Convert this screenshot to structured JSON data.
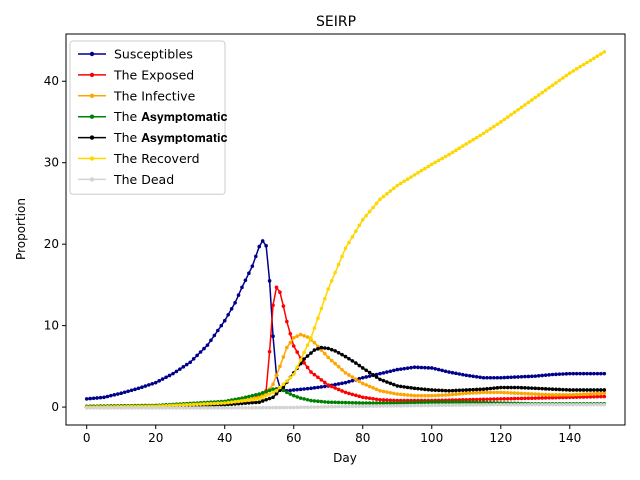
{
  "chart_data": {
    "type": "line",
    "title": "SEIRP",
    "xlabel": "Day",
    "ylabel": "Proportion",
    "xlim": [
      -6,
      156
    ],
    "ylim": [
      -2.2,
      45.8
    ],
    "xticks": [
      0,
      20,
      40,
      60,
      80,
      100,
      120,
      140
    ],
    "yticks": [
      0,
      10,
      20,
      30,
      40
    ],
    "grid": false,
    "legend": "top-left",
    "marker": "dot",
    "series": [
      {
        "name": "Susceptibles",
        "color": "#00008b",
        "points": [
          [
            0,
            1.0
          ],
          [
            5,
            1.2
          ],
          [
            10,
            1.7
          ],
          [
            15,
            2.3
          ],
          [
            20,
            3.0
          ],
          [
            25,
            4.1
          ],
          [
            30,
            5.5
          ],
          [
            35,
            7.6
          ],
          [
            40,
            10.6
          ],
          [
            43,
            12.8
          ],
          [
            45,
            14.7
          ],
          [
            48,
            17.3
          ],
          [
            50,
            19.7
          ],
          [
            51,
            20.4
          ],
          [
            52,
            19.8
          ],
          [
            53,
            15.5
          ],
          [
            54,
            8.7
          ],
          [
            55,
            3.9
          ],
          [
            56,
            2.4
          ],
          [
            58,
            2.0
          ],
          [
            60,
            2.1
          ],
          [
            65,
            2.3
          ],
          [
            70,
            2.6
          ],
          [
            75,
            3.0
          ],
          [
            80,
            3.6
          ],
          [
            85,
            4.1
          ],
          [
            90,
            4.6
          ],
          [
            95,
            4.9
          ],
          [
            100,
            4.8
          ],
          [
            105,
            4.3
          ],
          [
            110,
            3.9
          ],
          [
            115,
            3.6
          ],
          [
            120,
            3.6
          ],
          [
            125,
            3.7
          ],
          [
            130,
            3.8
          ],
          [
            135,
            4.0
          ],
          [
            140,
            4.1
          ],
          [
            145,
            4.1
          ],
          [
            150,
            4.1
          ]
        ]
      },
      {
        "name": "The Exposed",
        "color": "#ff0000",
        "points": [
          [
            0,
            0.0
          ],
          [
            20,
            0.1
          ],
          [
            40,
            0.4
          ],
          [
            48,
            0.9
          ],
          [
            52,
            2.0
          ],
          [
            53,
            6.8
          ],
          [
            54,
            12.5
          ],
          [
            55,
            14.7
          ],
          [
            56,
            14.1
          ],
          [
            57,
            12.4
          ],
          [
            58,
            10.5
          ],
          [
            59,
            9.0
          ],
          [
            60,
            7.5
          ],
          [
            62,
            6.0
          ],
          [
            65,
            4.3
          ],
          [
            70,
            2.7
          ],
          [
            75,
            1.8
          ],
          [
            80,
            1.2
          ],
          [
            85,
            0.9
          ],
          [
            90,
            0.8
          ],
          [
            100,
            0.8
          ],
          [
            110,
            0.9
          ],
          [
            120,
            1.0
          ],
          [
            130,
            1.1
          ],
          [
            140,
            1.2
          ],
          [
            150,
            1.3
          ]
        ]
      },
      {
        "name": "The Infective",
        "color": "#ffa500",
        "points": [
          [
            0,
            0.1
          ],
          [
            20,
            0.2
          ],
          [
            40,
            0.5
          ],
          [
            48,
            1.0
          ],
          [
            52,
            1.6
          ],
          [
            54,
            2.8
          ],
          [
            56,
            5.0
          ],
          [
            58,
            7.3
          ],
          [
            60,
            8.5
          ],
          [
            62,
            8.9
          ],
          [
            64,
            8.6
          ],
          [
            66,
            7.9
          ],
          [
            68,
            7.0
          ],
          [
            70,
            6.1
          ],
          [
            75,
            4.2
          ],
          [
            80,
            2.9
          ],
          [
            85,
            2.0
          ],
          [
            90,
            1.6
          ],
          [
            95,
            1.4
          ],
          [
            100,
            1.4
          ],
          [
            105,
            1.5
          ],
          [
            110,
            1.7
          ],
          [
            115,
            1.8
          ],
          [
            120,
            1.8
          ],
          [
            125,
            1.7
          ],
          [
            130,
            1.6
          ],
          [
            135,
            1.5
          ],
          [
            140,
            1.5
          ],
          [
            145,
            1.6
          ],
          [
            150,
            1.7
          ]
        ]
      },
      {
        "name": "The 𝐀𝐬𝐲𝐦𝐩𝐭𝐨𝐦𝐚𝐭𝐢𝐜",
        "color": "#008000",
        "points": [
          [
            0,
            0.1
          ],
          [
            20,
            0.2
          ],
          [
            40,
            0.7
          ],
          [
            45,
            1.1
          ],
          [
            50,
            1.6
          ],
          [
            54,
            2.2
          ],
          [
            56,
            2.3
          ],
          [
            58,
            1.8
          ],
          [
            60,
            1.4
          ],
          [
            62,
            1.1
          ],
          [
            65,
            0.8
          ],
          [
            70,
            0.6
          ],
          [
            80,
            0.5
          ],
          [
            90,
            0.5
          ],
          [
            100,
            0.6
          ],
          [
            110,
            0.6
          ],
          [
            120,
            0.5
          ],
          [
            130,
            0.4
          ],
          [
            140,
            0.4
          ],
          [
            150,
            0.4
          ]
        ]
      },
      {
        "name": "The 𝐀𝐬𝐲𝐦𝐩𝐭𝐨𝐦𝐚𝐭𝐢𝐜",
        "color": "#000000",
        "points": [
          [
            0,
            0.0
          ],
          [
            20,
            0.1
          ],
          [
            40,
            0.3
          ],
          [
            50,
            0.6
          ],
          [
            54,
            1.2
          ],
          [
            57,
            2.5
          ],
          [
            60,
            4.2
          ],
          [
            63,
            5.9
          ],
          [
            66,
            7.0
          ],
          [
            68,
            7.3
          ],
          [
            70,
            7.2
          ],
          [
            72,
            6.9
          ],
          [
            75,
            6.2
          ],
          [
            78,
            5.4
          ],
          [
            80,
            4.8
          ],
          [
            85,
            3.4
          ],
          [
            90,
            2.6
          ],
          [
            95,
            2.3
          ],
          [
            100,
            2.1
          ],
          [
            105,
            2.0
          ],
          [
            110,
            2.1
          ],
          [
            115,
            2.2
          ],
          [
            120,
            2.4
          ],
          [
            125,
            2.4
          ],
          [
            130,
            2.3
          ],
          [
            135,
            2.2
          ],
          [
            140,
            2.1
          ],
          [
            145,
            2.1
          ],
          [
            150,
            2.1
          ]
        ]
      },
      {
        "name": "The Recoverd",
        "color": "#ffd700",
        "points": [
          [
            0,
            0.0
          ],
          [
            20,
            0.1
          ],
          [
            40,
            0.5
          ],
          [
            50,
            1.0
          ],
          [
            55,
            2.0
          ],
          [
            60,
            4.0
          ],
          [
            65,
            8.5
          ],
          [
            70,
            14.5
          ],
          [
            75,
            19.5
          ],
          [
            80,
            23.0
          ],
          [
            85,
            25.5
          ],
          [
            90,
            27.2
          ],
          [
            95,
            28.5
          ],
          [
            100,
            29.8
          ],
          [
            105,
            31.0
          ],
          [
            110,
            32.3
          ],
          [
            115,
            33.6
          ],
          [
            120,
            35.0
          ],
          [
            125,
            36.5
          ],
          [
            130,
            38.0
          ],
          [
            135,
            39.5
          ],
          [
            140,
            41.0
          ],
          [
            145,
            42.3
          ],
          [
            150,
            43.6
          ]
        ]
      },
      {
        "name": "The Dead",
        "color": "#d3d3d3",
        "points": [
          [
            0,
            -0.1
          ],
          [
            20,
            -0.1
          ],
          [
            40,
            -0.1
          ],
          [
            60,
            -0.05
          ],
          [
            80,
            0.1
          ],
          [
            100,
            0.2
          ],
          [
            120,
            0.3
          ],
          [
            140,
            0.3
          ],
          [
            150,
            0.3
          ]
        ]
      }
    ]
  }
}
